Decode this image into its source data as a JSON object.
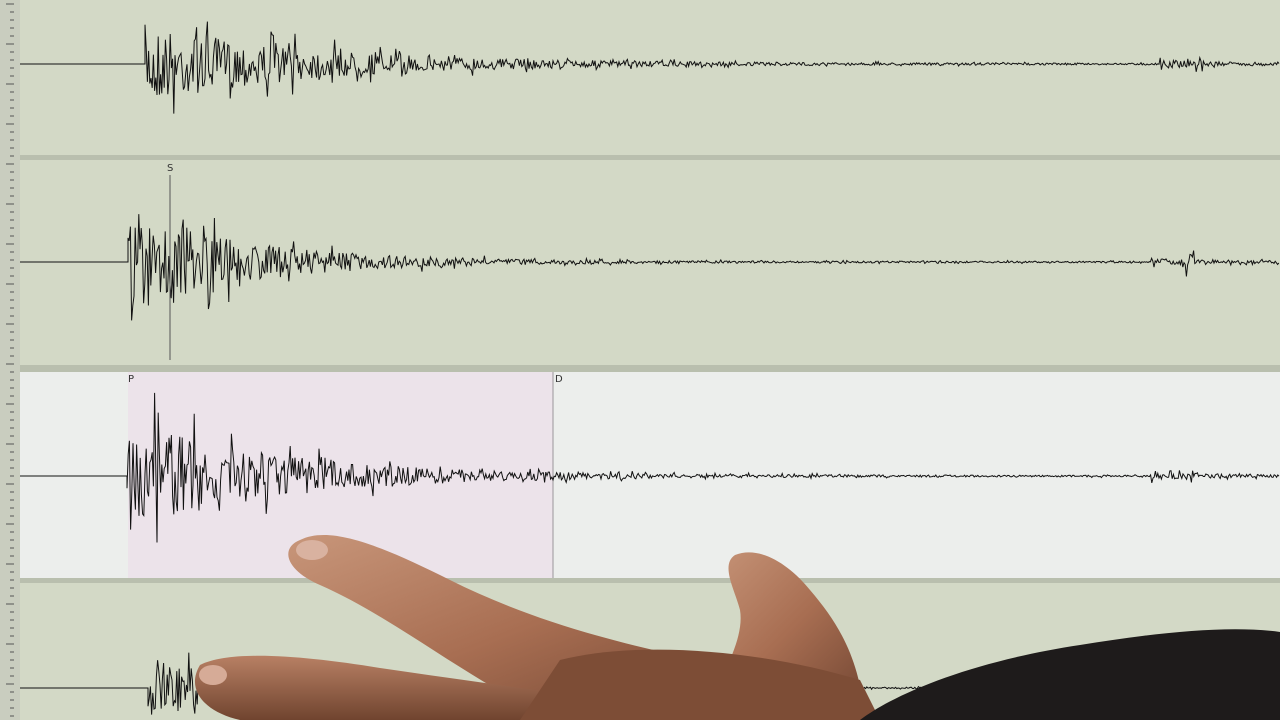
{
  "markers": [
    {
      "label": "S"
    },
    {
      "label": "P"
    },
    {
      "label": "D"
    }
  ]
}
